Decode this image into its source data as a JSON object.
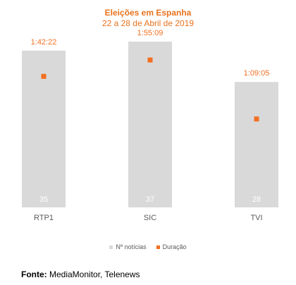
{
  "colors": {
    "bar": "#d9d9d9",
    "marker": "#f26f21",
    "title": "#e8731e",
    "bar_label": "#ffffff",
    "axis_text": "#595959"
  },
  "chart_data": {
    "type": "bar",
    "title": "Eleições em Espanha",
    "subtitle": "22 a 28 de Abril de 2019",
    "categories": [
      "RTP1",
      "SIC",
      "TVI"
    ],
    "series": [
      {
        "name": "Nº notícias",
        "type": "bar",
        "values": [
          35,
          37,
          28
        ]
      },
      {
        "name": "Duração",
        "type": "marker",
        "values": [
          "1:42:22",
          "1:55:09",
          "1:09:05"
        ],
        "seconds": [
          6142,
          6909,
          4145
        ]
      }
    ],
    "ylim_bars": [
      0,
      40
    ],
    "ylim_duration_seconds": [
      0,
      8400
    ],
    "grid": false,
    "legend_position": "bottom"
  },
  "source": {
    "label": "Fonte:",
    "text": "MediaMonitor, Telenews"
  }
}
